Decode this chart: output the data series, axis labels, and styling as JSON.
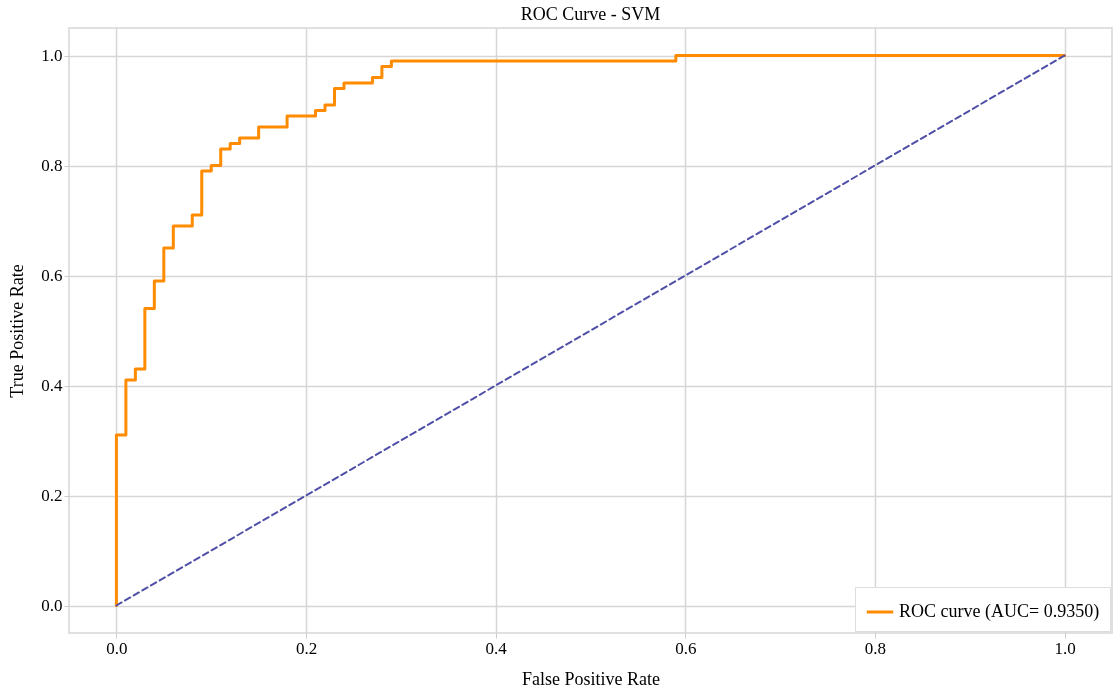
{
  "chart_data": {
    "type": "line",
    "title": "ROC Curve - SVM",
    "xlabel": "False Positive Rate",
    "ylabel": "True Positive Rate",
    "xlim": [
      -0.05,
      1.05
    ],
    "ylim": [
      -0.05,
      1.05
    ],
    "xticks": [
      {
        "value": 0,
        "label": "0.0"
      },
      {
        "value": 0.2,
        "label": "0.2"
      },
      {
        "value": 0.4,
        "label": "0.4"
      },
      {
        "value": 0.6,
        "label": "0.6"
      },
      {
        "value": 0.8,
        "label": "0.8"
      },
      {
        "value": 1,
        "label": "1.0"
      }
    ],
    "yticks": [
      {
        "value": 0,
        "label": "0.0"
      },
      {
        "value": 0.2,
        "label": "0.2"
      },
      {
        "value": 0.4,
        "label": "0.4"
      },
      {
        "value": 0.6,
        "label": "0.6"
      },
      {
        "value": 0.8,
        "label": "0.8"
      },
      {
        "value": 1,
        "label": "1.0"
      }
    ],
    "grid": true,
    "legend": "bottom right",
    "series": [
      {
        "name": "ROC curve (AUC= 0.9350)",
        "color": "#ff8c00",
        "line_style": "solid",
        "x": [
          0,
          0,
          0.01,
          0.01,
          0.02,
          0.02,
          0.03,
          0.03,
          0.04,
          0.04,
          0.05,
          0.05,
          0.06,
          0.06,
          0.08,
          0.08,
          0.09,
          0.09,
          0.1,
          0.1,
          0.11,
          0.11,
          0.12,
          0.12,
          0.13,
          0.13,
          0.15,
          0.15,
          0.18,
          0.18,
          0.21,
          0.21,
          0.22,
          0.22,
          0.23,
          0.23,
          0.24,
          0.24,
          0.27,
          0.27,
          0.28,
          0.28,
          0.29,
          0.29,
          0.59,
          0.59,
          1.0
        ],
        "values": [
          0,
          0.31,
          0.31,
          0.41,
          0.41,
          0.43,
          0.43,
          0.54,
          0.54,
          0.59,
          0.59,
          0.65,
          0.65,
          0.69,
          0.69,
          0.71,
          0.71,
          0.79,
          0.79,
          0.8,
          0.8,
          0.83,
          0.83,
          0.84,
          0.84,
          0.85,
          0.85,
          0.87,
          0.87,
          0.89,
          0.89,
          0.9,
          0.9,
          0.91,
          0.91,
          0.94,
          0.94,
          0.95,
          0.95,
          0.96,
          0.96,
          0.98,
          0.98,
          0.99,
          0.99,
          1.0,
          1.0
        ]
      },
      {
        "color": "#4f4fa8",
        "line_style": "dashed",
        "x": [
          0,
          1
        ],
        "values": [
          0,
          1
        ]
      }
    ]
  }
}
